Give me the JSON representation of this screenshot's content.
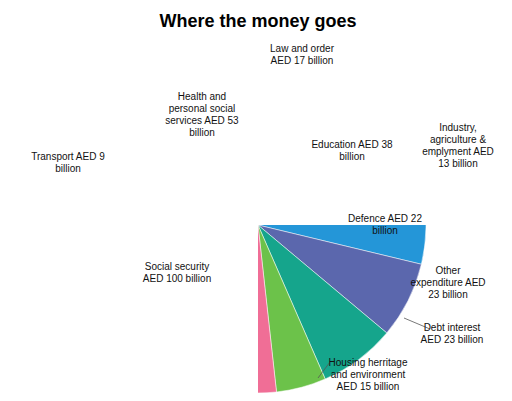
{
  "chart_data": {
    "type": "pie",
    "title": "Where the money goes",
    "categories": [
      "Law and order",
      "Education",
      "Industry, agriculture & emplyment",
      "Defence",
      "Other expenditure",
      "Debt interest",
      "Housing herritage and environment",
      "Social security",
      "Transport",
      "Health and personal social services"
    ],
    "values": [
      17,
      38,
      13,
      22,
      23,
      23,
      15,
      100,
      9,
      53
    ],
    "value_labels": [
      "AED 17 billion",
      "AED 38 billion",
      "AED 13 billion",
      "AED 22 billion",
      "AED 23 billion",
      "AED 23 billion",
      "AED 15 billion",
      "AED 100 billion",
      "AED 9 billion",
      "AED 53 billion"
    ],
    "colors": [
      "#3db54a",
      "#d81b60",
      "#f5a31a",
      "#2496d8",
      "#5b67ad",
      "#15a58c",
      "#6cc24a",
      "#f06e96",
      "#f9b650",
      "#6dc0ec"
    ],
    "data_labels": true
  }
}
